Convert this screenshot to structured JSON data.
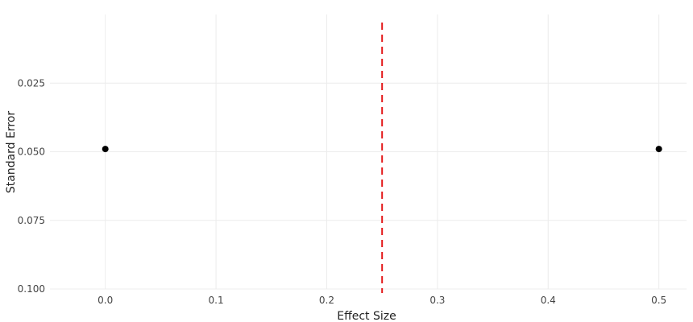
{
  "chart_data": {
    "type": "scatter",
    "title": "",
    "xlabel": "Effect Size",
    "ylabel": "Standard Error",
    "xlim": [
      -0.05,
      0.525
    ],
    "ylim": [
      0.1,
      0.0
    ],
    "y_reversed": true,
    "xticks": [
      0.0,
      0.1,
      0.2,
      0.3,
      0.4,
      0.5
    ],
    "xtick_labels": [
      "0.0",
      "0.1",
      "0.2",
      "0.3",
      "0.4",
      "0.5"
    ],
    "yticks": [
      0.025,
      0.05,
      0.075,
      0.1
    ],
    "ytick_labels": [
      "0.025",
      "0.050",
      "0.075",
      "0.100"
    ],
    "grid": true,
    "legend": "none",
    "points": [
      {
        "x": 0.0,
        "y": 0.049
      },
      {
        "x": 0.5,
        "y": 0.049
      }
    ],
    "reference_line": {
      "x": 0.25,
      "style": "dashed",
      "color": "#e31a1c"
    },
    "point_color": "#000000"
  }
}
